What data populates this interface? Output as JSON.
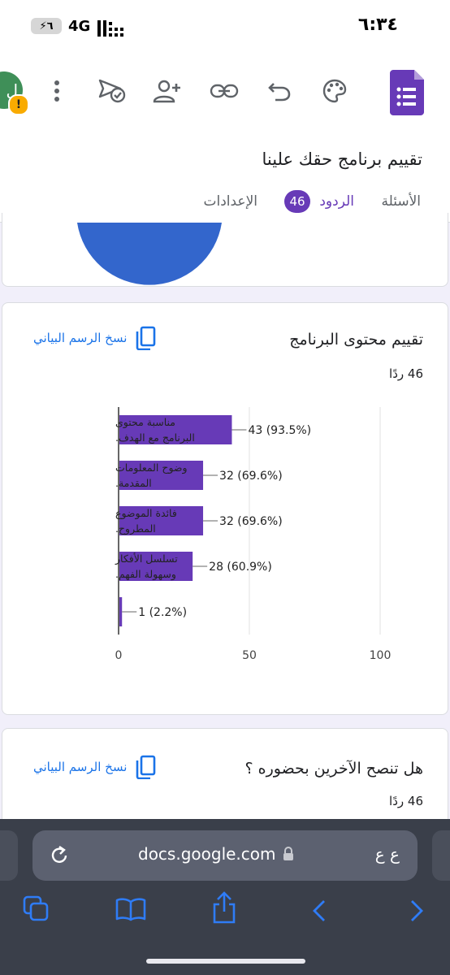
{
  "status": {
    "time": "٦:٣٤",
    "network": "4G",
    "battery": "٦"
  },
  "toolbar": {
    "icons": [
      "avatar-icon",
      "more-vert-icon",
      "send-icon",
      "add-person-icon",
      "link-icon",
      "undo-icon",
      "palette-icon",
      "forms-logo-icon"
    ],
    "avatar_letter": "ل",
    "avatar_alert": "!"
  },
  "header": {
    "title": "تقييم برنامج حقك علينا",
    "tabs": {
      "questions": "الأسئلة",
      "responses": "الردود",
      "responses_count": "46",
      "settings": "الإعدادات"
    }
  },
  "cards": [
    {
      "title": "تقييم محتوى البرنامج",
      "responses": "46 ردًا",
      "copy_label": "نسخ الرسم البياني"
    },
    {
      "title": "هل تنصح الآخرين بحضوره ؟",
      "responses": "46 ردًا",
      "copy_label": "نسخ الرسم البياني"
    }
  ],
  "chart_data": {
    "type": "bar",
    "orientation": "horizontal",
    "categories": [
      [
        "مناسبة محتوى",
        "البرنامج مع الهدف."
      ],
      [
        "وضوح المعلومات",
        "المقدمة."
      ],
      [
        "فائدة الموضوع",
        "المطروح."
      ],
      [
        "تسلسل الأفكار",
        "وسهولة الفهم."
      ],
      [
        ""
      ]
    ],
    "values": [
      43,
      32,
      32,
      28,
      1
    ],
    "data_labels": [
      "43 (93.5%)",
      "32 (69.6%)",
      "32 (69.6%)",
      "28 (60.9%)",
      "1 (2.2%)"
    ],
    "xlim": [
      0,
      100
    ],
    "xticks": [
      "0",
      "50",
      "100"
    ],
    "grid": true,
    "color": "#673ab7"
  },
  "safari": {
    "url": "docs.google.com",
    "text_size": "ع ع"
  },
  "colors": {
    "accent": "#673ab7",
    "link": "#1a73e8",
    "pie": "#3366cc"
  }
}
